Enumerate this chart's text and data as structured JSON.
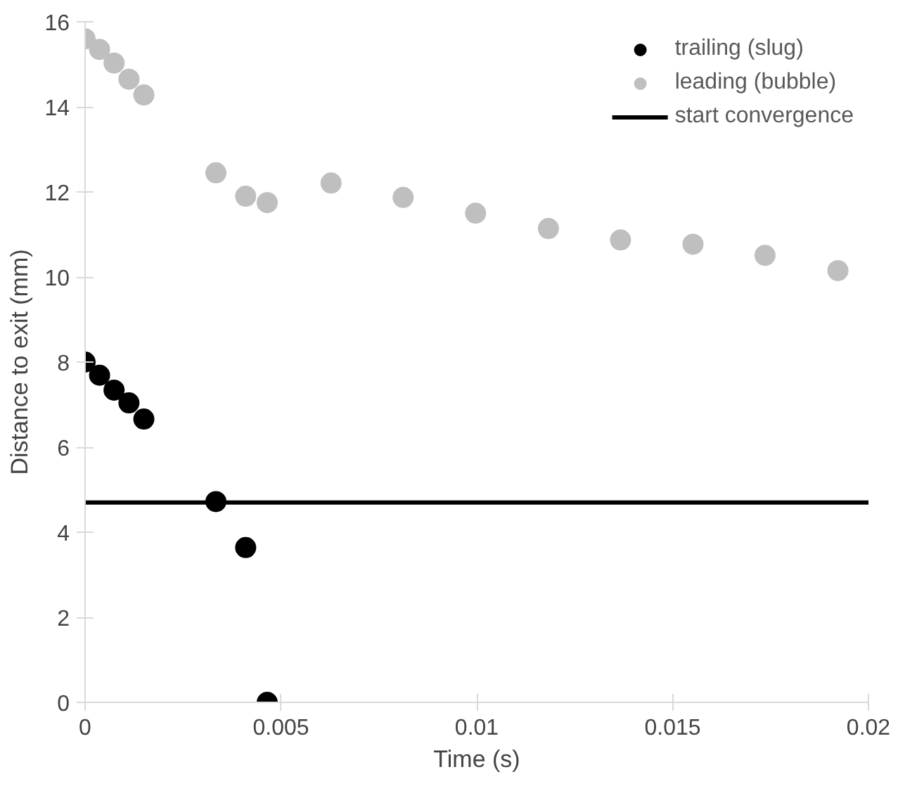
{
  "chart_data": {
    "type": "scatter",
    "xlabel": "Time (s)",
    "ylabel": "Distance to exit (mm)",
    "xlim": [
      0,
      0.02
    ],
    "ylim": [
      0,
      16
    ],
    "xticks": [
      0,
      0.005,
      0.01,
      0.015,
      0.02
    ],
    "yticks": [
      0,
      2,
      4,
      6,
      8,
      10,
      12,
      14,
      16
    ],
    "grid": false,
    "legend": "top right",
    "series": [
      {
        "name": "trailing (slug)",
        "color": "#000000",
        "marker": "circle",
        "x": [
          0,
          0.00037,
          0.00074,
          0.00112,
          0.0015,
          0.00334,
          0.0041,
          0.00465
        ],
        "values": [
          8.0,
          7.69,
          7.34,
          7.04,
          6.66,
          4.72,
          3.64,
          0
        ]
      },
      {
        "name": "leading (bubble)",
        "color": "#bfbfbf",
        "marker": "circle",
        "x": [
          0,
          0.00037,
          0.00074,
          0.00112,
          0.0015,
          0.00334,
          0.0041,
          0.00465,
          0.00628,
          0.00812,
          0.00997,
          0.01183,
          0.01367,
          0.01552,
          0.01736,
          0.01922
        ],
        "values": [
          15.6,
          15.35,
          15.03,
          14.65,
          14.28,
          12.45,
          11.9,
          11.75,
          12.21,
          11.87,
          11.5,
          11.14,
          10.87,
          10.77,
          10.51,
          10.15
        ]
      },
      {
        "name": "start convergence",
        "type": "line",
        "marker": "none",
        "color": "#000000",
        "x": [
          0,
          0.02
        ],
        "values": [
          4.7,
          4.7
        ]
      }
    ]
  }
}
